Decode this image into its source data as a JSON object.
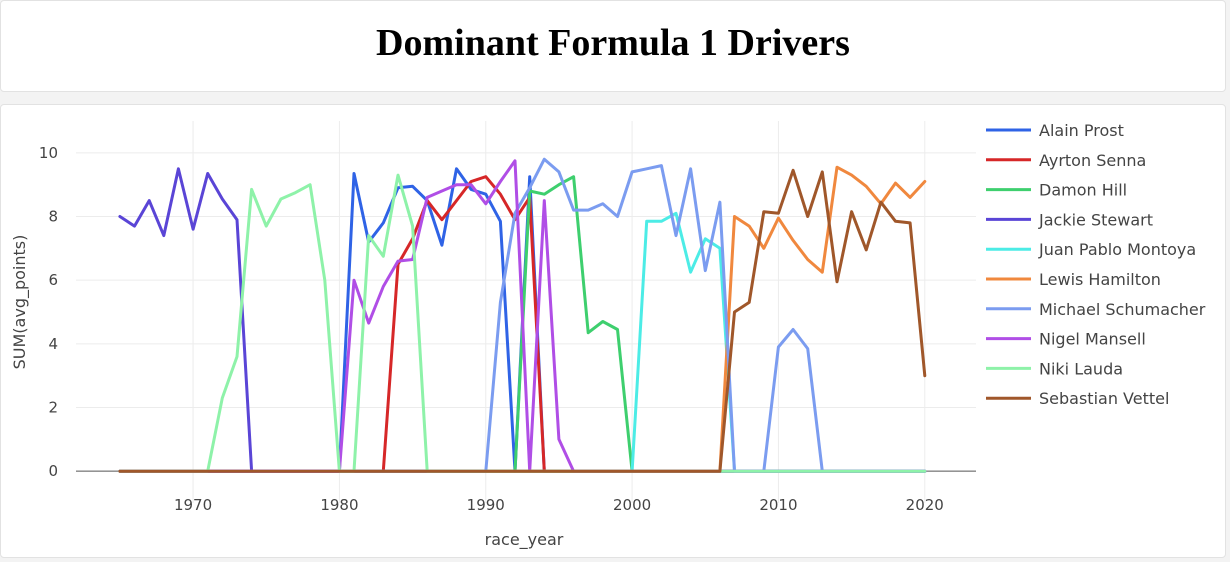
{
  "header": {
    "title": "Dominant Formula 1 Drivers"
  },
  "chart_data": {
    "type": "line",
    "xlabel": "race_year",
    "ylabel": "SUM(avg_points)",
    "xlim": [
      1962,
      2023.5
    ],
    "ylim": [
      -1,
      11
    ],
    "xticks": [
      1970,
      1980,
      1990,
      2000,
      2010,
      2020
    ],
    "yticks": [
      0,
      2,
      4,
      6,
      8,
      10
    ],
    "grid": true,
    "legend_position": "right",
    "x": [
      1965,
      1966,
      1967,
      1968,
      1969,
      1970,
      1971,
      1972,
      1973,
      1974,
      1975,
      1976,
      1977,
      1978,
      1979,
      1980,
      1981,
      1982,
      1983,
      1984,
      1985,
      1986,
      1987,
      1988,
      1989,
      1990,
      1991,
      1992,
      1993,
      1994,
      1995,
      1996,
      1997,
      1998,
      1999,
      2000,
      2001,
      2002,
      2003,
      2004,
      2005,
      2006,
      2007,
      2008,
      2009,
      2010,
      2011,
      2012,
      2013,
      2014,
      2015,
      2016,
      2017,
      2018,
      2019,
      2020
    ],
    "series": [
      {
        "name": "Alain Prost",
        "color": "#2f63e6",
        "values": [
          0,
          0,
          0,
          0,
          0,
          0,
          0,
          0,
          0,
          0,
          0,
          0,
          0,
          0,
          0,
          0,
          9.35,
          7.2,
          7.8,
          8.9,
          8.95,
          8.5,
          7.1,
          9.5,
          8.85,
          8.7,
          7.85,
          0,
          9.25,
          0,
          0,
          0,
          0,
          0,
          0,
          0,
          0,
          0,
          0,
          0,
          0,
          0,
          0,
          0,
          0,
          0,
          0,
          0,
          0,
          0,
          0,
          0,
          0,
          0,
          0,
          0
        ]
      },
      {
        "name": "Ayrton Senna",
        "color": "#d62728",
        "values": [
          0,
          0,
          0,
          0,
          0,
          0,
          0,
          0,
          0,
          0,
          0,
          0,
          0,
          0,
          0,
          0,
          0,
          0,
          0,
          6.5,
          7.3,
          8.5,
          7.9,
          8.5,
          9.1,
          9.25,
          8.7,
          7.9,
          8.6,
          0,
          0,
          0,
          0,
          0,
          0,
          0,
          0,
          0,
          0,
          0,
          0,
          0,
          0,
          0,
          0,
          0,
          0,
          0,
          0,
          0,
          0,
          0,
          0,
          0,
          0,
          0
        ]
      },
      {
        "name": "Damon Hill",
        "color": "#3ecf6e",
        "values": [
          0,
          0,
          0,
          0,
          0,
          0,
          0,
          0,
          0,
          0,
          0,
          0,
          0,
          0,
          0,
          0,
          0,
          0,
          0,
          0,
          0,
          0,
          0,
          0,
          0,
          0,
          0,
          0,
          8.8,
          8.7,
          9.0,
          9.25,
          4.35,
          4.7,
          4.45,
          0,
          0,
          0,
          0,
          0,
          0,
          0,
          0,
          0,
          0,
          0,
          0,
          0,
          0,
          0,
          0,
          0,
          0,
          0,
          0,
          0
        ]
      },
      {
        "name": "Jackie Stewart",
        "color": "#5a45d6",
        "values": [
          8.0,
          7.7,
          8.5,
          7.4,
          9.5,
          7.6,
          9.35,
          8.55,
          7.9,
          0,
          0,
          0,
          0,
          0,
          0,
          0,
          0,
          0,
          0,
          0,
          0,
          0,
          0,
          0,
          0,
          0,
          0,
          0,
          0,
          0,
          0,
          0,
          0,
          0,
          0,
          0,
          0,
          0,
          0,
          0,
          0,
          0,
          0,
          0,
          0,
          0,
          0,
          0,
          0,
          0,
          0,
          0,
          0,
          0,
          0,
          0
        ]
      },
      {
        "name": "Juan Pablo Montoya",
        "color": "#4cece6",
        "values": [
          0,
          0,
          0,
          0,
          0,
          0,
          0,
          0,
          0,
          0,
          0,
          0,
          0,
          0,
          0,
          0,
          0,
          0,
          0,
          0,
          0,
          0,
          0,
          0,
          0,
          0,
          0,
          0,
          0,
          0,
          0,
          0,
          0,
          0,
          0,
          0,
          7.85,
          7.85,
          8.1,
          6.25,
          7.3,
          7.0,
          0,
          0,
          0,
          0,
          0,
          0,
          0,
          0,
          0,
          0,
          0,
          0,
          0,
          0
        ]
      },
      {
        "name": "Lewis Hamilton",
        "color": "#f0883e",
        "values": [
          0,
          0,
          0,
          0,
          0,
          0,
          0,
          0,
          0,
          0,
          0,
          0,
          0,
          0,
          0,
          0,
          0,
          0,
          0,
          0,
          0,
          0,
          0,
          0,
          0,
          0,
          0,
          0,
          0,
          0,
          0,
          0,
          0,
          0,
          0,
          0,
          0,
          0,
          0,
          0,
          0,
          0,
          8.0,
          7.7,
          7.0,
          7.95,
          7.25,
          6.65,
          6.25,
          9.55,
          9.3,
          8.95,
          8.4,
          9.05,
          8.6,
          9.1
        ]
      },
      {
        "name": "Michael Schumacher",
        "color": "#7b9cf0",
        "values": [
          0,
          0,
          0,
          0,
          0,
          0,
          0,
          0,
          0,
          0,
          0,
          0,
          0,
          0,
          0,
          0,
          0,
          0,
          0,
          0,
          0,
          0,
          0,
          0,
          0,
          0,
          5.3,
          8.1,
          8.9,
          9.8,
          9.4,
          8.2,
          8.2,
          8.4,
          8.0,
          9.4,
          9.5,
          9.6,
          7.4,
          9.5,
          6.3,
          8.45,
          0,
          0,
          0,
          3.9,
          4.45,
          3.85,
          0,
          0,
          0,
          0,
          0,
          0,
          0,
          0
        ]
      },
      {
        "name": "Nigel Mansell",
        "color": "#b04ee6",
        "values": [
          0,
          0,
          0,
          0,
          0,
          0,
          0,
          0,
          0,
          0,
          0,
          0,
          0,
          0,
          0,
          0,
          6.0,
          4.65,
          5.8,
          6.6,
          6.65,
          8.6,
          8.8,
          9.0,
          9.0,
          8.4,
          9.1,
          9.75,
          0,
          8.5,
          1.0,
          0,
          0,
          0,
          0,
          0,
          0,
          0,
          0,
          0,
          0,
          0,
          0,
          0,
          0,
          0,
          0,
          0,
          0,
          0,
          0,
          0,
          0,
          0,
          0,
          0
        ]
      },
      {
        "name": "Niki Lauda",
        "color": "#8ef2a9",
        "values": [
          0,
          0,
          0,
          0,
          0,
          0,
          0,
          2.3,
          3.6,
          8.85,
          7.7,
          8.55,
          8.75,
          9.0,
          6.0,
          0,
          0,
          7.4,
          6.75,
          9.3,
          7.7,
          0,
          0,
          0,
          0,
          0,
          0,
          0,
          0,
          0,
          0,
          0,
          0,
          0,
          0,
          0,
          0,
          0,
          0,
          0,
          0,
          0,
          0,
          0,
          0,
          0,
          0,
          0,
          0,
          0,
          0,
          0,
          0,
          0,
          0,
          0
        ]
      },
      {
        "name": "Sebastian Vettel",
        "color": "#a0572a",
        "values": [
          0,
          0,
          0,
          0,
          0,
          0,
          0,
          0,
          0,
          0,
          0,
          0,
          0,
          0,
          0,
          0,
          0,
          0,
          0,
          0,
          0,
          0,
          0,
          0,
          0,
          0,
          0,
          0,
          0,
          0,
          0,
          0,
          0,
          0,
          0,
          0,
          0,
          0,
          0,
          0,
          0,
          0,
          5.0,
          5.3,
          8.15,
          8.1,
          9.45,
          8.0,
          9.4,
          5.95,
          8.15,
          6.95,
          8.45,
          7.85,
          7.8,
          3.0
        ]
      }
    ]
  }
}
